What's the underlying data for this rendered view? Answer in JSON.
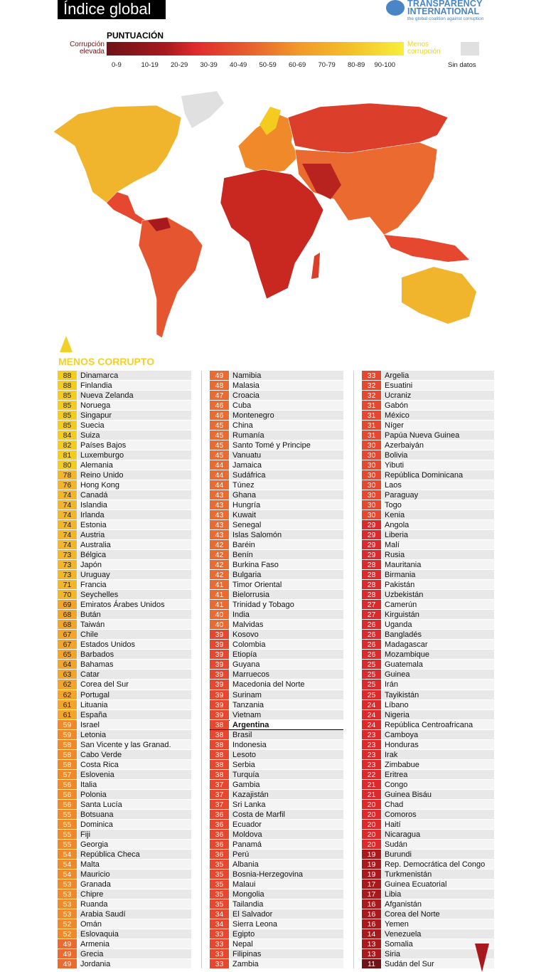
{
  "header": {
    "title": "Índice global",
    "logo_line1": "TRANSPARENCY",
    "logo_line2": "INTERNATIONAL",
    "logo_tagline": "the global coalition against corruption"
  },
  "legend": {
    "title": "PUNTUACIÓN",
    "left_label": "Corrupción elevada",
    "right_label": "Menos corrupción",
    "no_data": "Sin datos",
    "ranges": [
      "0-9",
      "10-19",
      "20-29",
      "30-39",
      "40-49",
      "50-59",
      "60-69",
      "70-79",
      "80-89",
      "90-100"
    ],
    "colors": [
      "#6d1418",
      "#a8191e",
      "#dc2a2c",
      "#e5472f",
      "#ea6a2f",
      "#f0892a",
      "#f29a2a",
      "#f3b52a",
      "#f4cc20",
      "#f7ef3a"
    ],
    "no_data_color": "#e0e0e0"
  },
  "list_header": "MENOS CORRUPTO",
  "highlight": "Argentina",
  "columns": [
    [
      [
        88,
        "Dinamarca"
      ],
      [
        88,
        "Finlandia"
      ],
      [
        85,
        "Nueva Zelanda"
      ],
      [
        85,
        "Noruega"
      ],
      [
        85,
        "Singapur"
      ],
      [
        85,
        "Suecia"
      ],
      [
        84,
        "Suiza"
      ],
      [
        82,
        "Países Bajos"
      ],
      [
        81,
        "Luxemburgo"
      ],
      [
        80,
        "Alemania"
      ],
      [
        78,
        "Reino Unido"
      ],
      [
        76,
        "Hong Kong"
      ],
      [
        74,
        "Canadá"
      ],
      [
        74,
        "Islandia"
      ],
      [
        74,
        "Irlanda"
      ],
      [
        74,
        "Estonia"
      ],
      [
        74,
        "Austria"
      ],
      [
        74,
        "Australia"
      ],
      [
        73,
        "Bélgica"
      ],
      [
        73,
        "Japón"
      ],
      [
        73,
        "Uruguay"
      ],
      [
        71,
        "Francia"
      ],
      [
        70,
        "Seychelles"
      ],
      [
        69,
        "Emiratos Árabes Unidos"
      ],
      [
        68,
        "Bután"
      ],
      [
        68,
        "Taiwán"
      ],
      [
        67,
        "Chile"
      ],
      [
        67,
        "Estados Unidos"
      ],
      [
        65,
        "Barbados"
      ],
      [
        64,
        "Bahamas"
      ],
      [
        63,
        "Catar"
      ],
      [
        62,
        "Corea del Sur"
      ],
      [
        62,
        "Portugal"
      ],
      [
        61,
        "Lituania"
      ],
      [
        61,
        "España"
      ],
      [
        59,
        "Israel"
      ],
      [
        59,
        "Letonia"
      ],
      [
        58,
        "San Vicente y las Granad."
      ],
      [
        58,
        "Cabo Verde"
      ],
      [
        58,
        "Costa Rica"
      ],
      [
        57,
        "Eslovenia"
      ],
      [
        56,
        "Italia"
      ],
      [
        56,
        "Polonia"
      ],
      [
        56,
        "Santa Lucía"
      ],
      [
        55,
        "Botsuana"
      ],
      [
        55,
        "Dominica"
      ],
      [
        55,
        "Fiji"
      ],
      [
        55,
        "Georgia"
      ],
      [
        54,
        "República Checa"
      ],
      [
        54,
        "Malta"
      ],
      [
        54,
        "Mauricio"
      ],
      [
        53,
        "Granada"
      ],
      [
        53,
        "Chipre"
      ],
      [
        53,
        "Ruanda"
      ],
      [
        53,
        "Arabia Saudí"
      ],
      [
        52,
        "Omán"
      ],
      [
        52,
        "Eslovaquia"
      ],
      [
        49,
        "Armenia"
      ],
      [
        49,
        "Grecia"
      ],
      [
        49,
        "Jordania"
      ]
    ],
    [
      [
        49,
        "Namibia"
      ],
      [
        48,
        "Malasia"
      ],
      [
        47,
        "Croacia"
      ],
      [
        46,
        "Cuba"
      ],
      [
        46,
        "Montenegro"
      ],
      [
        45,
        "China"
      ],
      [
        45,
        "Rumanía"
      ],
      [
        45,
        "Santo Tomé y Principe"
      ],
      [
        45,
        "Vanuatu"
      ],
      [
        44,
        "Jamaica"
      ],
      [
        44,
        "Sudáfrica"
      ],
      [
        44,
        "Túnez"
      ],
      [
        43,
        "Ghana"
      ],
      [
        43,
        "Hungría"
      ],
      [
        43,
        "Kuwait"
      ],
      [
        43,
        "Senegal"
      ],
      [
        43,
        "Islas Salomón"
      ],
      [
        42,
        "Baréin"
      ],
      [
        42,
        "Benín"
      ],
      [
        42,
        "Burkina Faso"
      ],
      [
        42,
        "Bulgaria"
      ],
      [
        41,
        "Timor Oriental"
      ],
      [
        41,
        "Bielorrusia"
      ],
      [
        41,
        "Trinidad y Tobago"
      ],
      [
        40,
        "India"
      ],
      [
        40,
        "Malvidas"
      ],
      [
        39,
        "Kosovo"
      ],
      [
        39,
        "Colombia"
      ],
      [
        39,
        "Etiopía"
      ],
      [
        39,
        "Guyana"
      ],
      [
        39,
        "Marruecos"
      ],
      [
        39,
        "Macedonia del Norte"
      ],
      [
        39,
        "Surinam"
      ],
      [
        39,
        "Tanzania"
      ],
      [
        39,
        "Vietnam"
      ],
      [
        38,
        "Argentina"
      ],
      [
        38,
        "Brasil"
      ],
      [
        38,
        "Indonesia"
      ],
      [
        38,
        "Lesoto"
      ],
      [
        38,
        "Serbia"
      ],
      [
        38,
        "Turquía"
      ],
      [
        37,
        "Gambia"
      ],
      [
        37,
        "Kazajistán"
      ],
      [
        37,
        "Sri Lanka"
      ],
      [
        36,
        "Costa de Marfil"
      ],
      [
        36,
        "Ecuador"
      ],
      [
        36,
        "Moldova"
      ],
      [
        36,
        "Panamá"
      ],
      [
        36,
        "Perú"
      ],
      [
        35,
        "Albania"
      ],
      [
        35,
        "Bosnia-Herzegovina"
      ],
      [
        35,
        "Malaui"
      ],
      [
        35,
        "Mongolia"
      ],
      [
        35,
        "Tailandia"
      ],
      [
        34,
        "El Salvador"
      ],
      [
        34,
        "Sierra Leona"
      ],
      [
        33,
        "Egipto"
      ],
      [
        33,
        "Nepal"
      ],
      [
        33,
        "Filipinas"
      ],
      [
        33,
        "Zambia"
      ]
    ],
    [
      [
        33,
        "Argelia"
      ],
      [
        32,
        "Esuatini"
      ],
      [
        32,
        "Ucraniz"
      ],
      [
        31,
        "Gabón"
      ],
      [
        31,
        "México"
      ],
      [
        31,
        "Níger"
      ],
      [
        31,
        "Papúa Nueva Guinea"
      ],
      [
        30,
        "Azerbaiyán"
      ],
      [
        30,
        "Bolivia"
      ],
      [
        30,
        "Yibuti"
      ],
      [
        30,
        "República Dominicana"
      ],
      [
        30,
        "Laos"
      ],
      [
        30,
        "Paraguay"
      ],
      [
        30,
        "Togo"
      ],
      [
        30,
        "Kenia"
      ],
      [
        29,
        "Angola"
      ],
      [
        29,
        "Liberia"
      ],
      [
        29,
        "Malí"
      ],
      [
        29,
        "Rusia"
      ],
      [
        28,
        "Mauritania"
      ],
      [
        28,
        "Birmania"
      ],
      [
        28,
        "Pakistán"
      ],
      [
        28,
        "Uzbekistán"
      ],
      [
        27,
        "Camerún"
      ],
      [
        27,
        "Kirguistán"
      ],
      [
        26,
        "Uganda"
      ],
      [
        26,
        "Bangladés"
      ],
      [
        26,
        "Madagascar"
      ],
      [
        26,
        "Mozambique"
      ],
      [
        25,
        "Guatemala"
      ],
      [
        25,
        "Guinea"
      ],
      [
        25,
        "Irán"
      ],
      [
        25,
        "Tayikistán"
      ],
      [
        24,
        "Líbano"
      ],
      [
        24,
        "Nigeria"
      ],
      [
        24,
        "República Centroafricana"
      ],
      [
        23,
        "Camboya"
      ],
      [
        23,
        "Honduras"
      ],
      [
        23,
        "Irak"
      ],
      [
        23,
        "Zimbabue"
      ],
      [
        22,
        "Eritrea"
      ],
      [
        21,
        "Congo"
      ],
      [
        21,
        "Guinea Bisáu"
      ],
      [
        20,
        "Chad"
      ],
      [
        20,
        "Comoros"
      ],
      [
        20,
        "Haití"
      ],
      [
        20,
        "Nicaragua"
      ],
      [
        20,
        "Sudán"
      ],
      [
        19,
        "Burundi"
      ],
      [
        19,
        "Rep. Democrática del Congo"
      ],
      [
        19,
        "Turkmenistán"
      ],
      [
        17,
        "Guinea Ecuatorial"
      ],
      [
        17,
        "Libia"
      ],
      [
        16,
        "Afganistán"
      ],
      [
        16,
        "Corea del Norte"
      ],
      [
        16,
        "Yemen"
      ],
      [
        14,
        "Venezuela"
      ],
      [
        13,
        "Somalia"
      ],
      [
        13,
        "Siria"
      ],
      [
        11,
        "Sudán del Sur"
      ]
    ]
  ]
}
